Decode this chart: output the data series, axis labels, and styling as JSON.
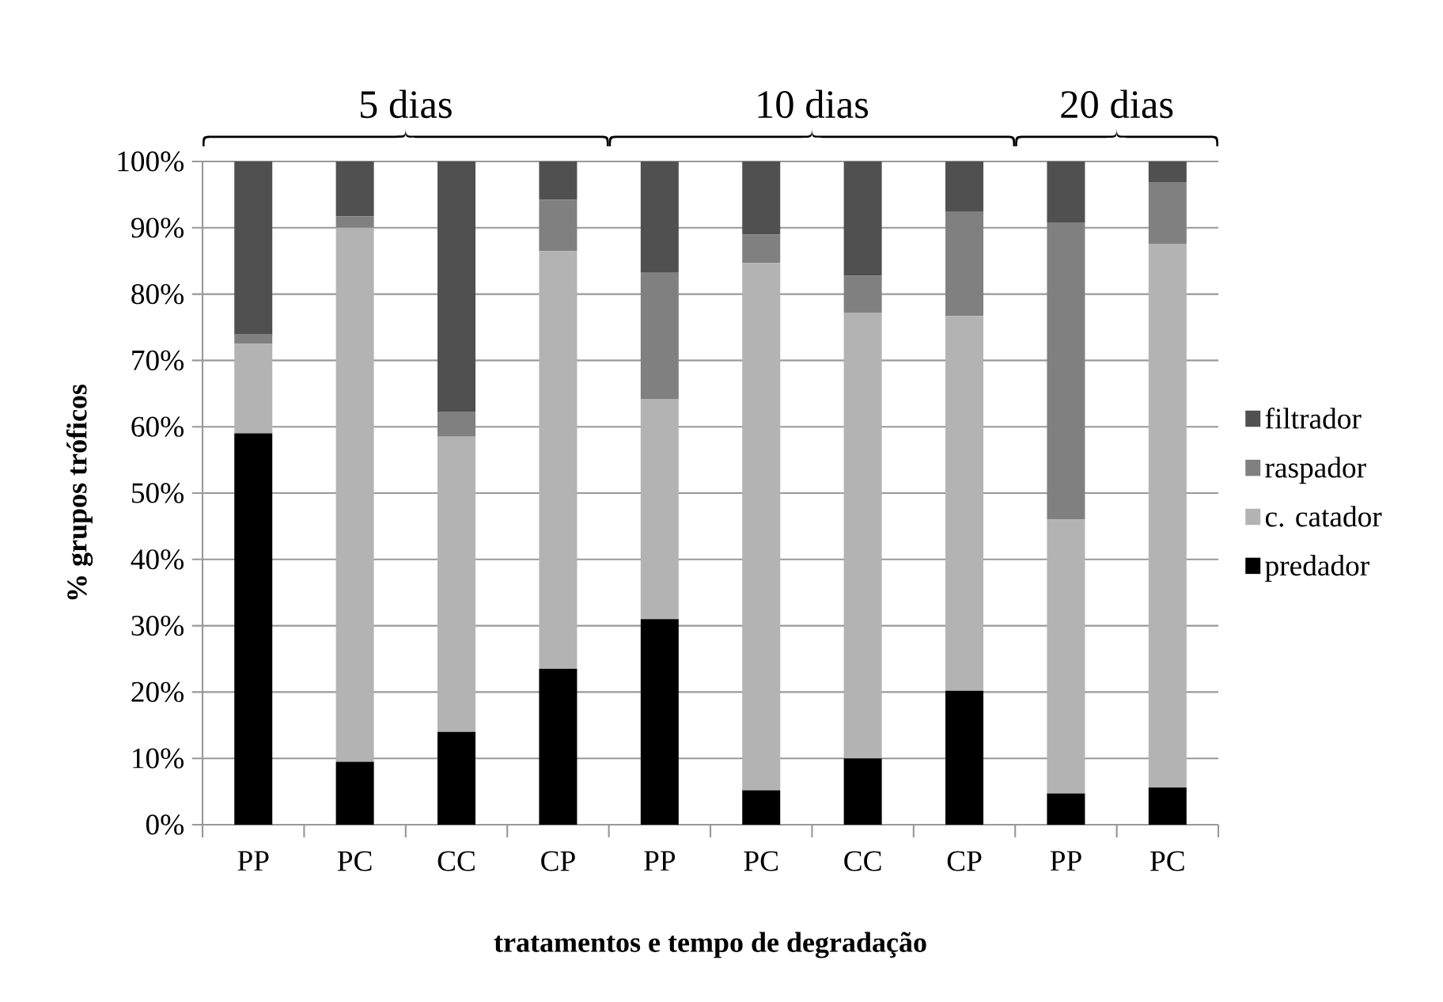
{
  "chart_data": {
    "type": "bar",
    "stacked": true,
    "xlabel": "tratamentos e tempo de degradação",
    "ylabel": "% grupos tróficos",
    "categories": [
      "PP",
      "PC",
      "CC",
      "CP",
      "PP",
      "PC",
      "CC",
      "CP",
      "PP",
      "PC"
    ],
    "series": [
      {
        "name": "predador",
        "color": "#000000",
        "values": [
          59,
          9.5,
          14,
          23.5,
          31,
          5.2,
          10,
          20.2,
          4.7,
          5.6
        ]
      },
      {
        "name": "c. catador",
        "color": "#b3b3b3",
        "values": [
          13.5,
          80.5,
          44.5,
          63,
          33.2,
          79.5,
          67.2,
          56.5,
          41.3,
          82
        ]
      },
      {
        "name": "raspador",
        "color": "#808080",
        "values": [
          1.5,
          1.7,
          3.8,
          7.7,
          19.1,
          4.3,
          5.6,
          15.7,
          44.8,
          9.3
        ]
      },
      {
        "name": "filtrador",
        "color": "#505050",
        "values": [
          26,
          8.3,
          37.7,
          5.8,
          16.7,
          11,
          17.2,
          7.6,
          9.2,
          3.1
        ]
      }
    ],
    "ylim": [
      0,
      100
    ],
    "yticks": [
      {
        "value": 0,
        "label": "0%"
      },
      {
        "value": 10,
        "label": "10%"
      },
      {
        "value": 20,
        "label": "20%"
      },
      {
        "value": 30,
        "label": "30%"
      },
      {
        "value": 40,
        "label": "40%"
      },
      {
        "value": 50,
        "label": "50%"
      },
      {
        "value": 60,
        "label": "60%"
      },
      {
        "value": 70,
        "label": "70%"
      },
      {
        "value": 80,
        "label": "80%"
      },
      {
        "value": 90,
        "label": "90%"
      },
      {
        "value": 100,
        "label": "100%"
      }
    ],
    "grid": "y",
    "legend": "right",
    "annotations": [
      "5 dias",
      "10 dias",
      "20 dias"
    ]
  }
}
